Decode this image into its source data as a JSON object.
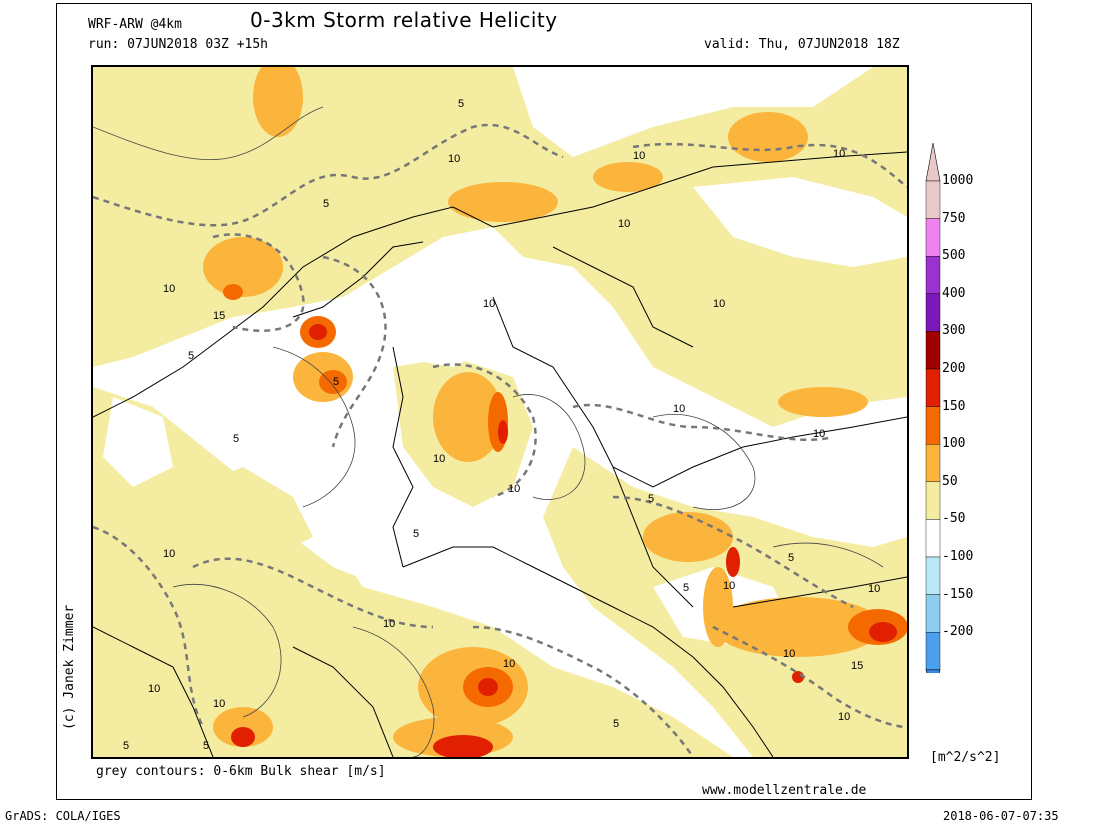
{
  "header": {
    "model": "WRF-ARW @4km",
    "title": "0-3km Storm relative Helicity",
    "run": "run: 07JUN2018 03Z +15h",
    "valid": "valid: Thu, 07JUN2018 18Z"
  },
  "footer": {
    "caption": "grey contours: 0-6km Bulk shear [m/s]",
    "website": "www.modellzentrale.de",
    "software": "GrADS: COLA/IGES",
    "timestamp": "2018-06-07-07:35",
    "credit": "(c) Janek Zimmer"
  },
  "colorbar": {
    "units": "[m^2/s^2]",
    "levels": [
      {
        "label": "1000",
        "color": "#e8c8c8"
      },
      {
        "label": "750",
        "color": "#ee82ee"
      },
      {
        "label": "500",
        "color": "#9a32cd"
      },
      {
        "label": "400",
        "color": "#7a18b8"
      },
      {
        "label": "300",
        "color": "#a00000"
      },
      {
        "label": "200",
        "color": "#e02000"
      },
      {
        "label": "150",
        "color": "#f56a00"
      },
      {
        "label": "100",
        "color": "#fbb43c"
      },
      {
        "label": "50",
        "color": "#f4eca0"
      },
      {
        "label": "-50",
        "color": "#ffffff"
      },
      {
        "label": "-100",
        "color": "#b8e8f5"
      },
      {
        "label": "-150",
        "color": "#8ccdf0"
      },
      {
        "label": "-200",
        "color": "#4aa0ee"
      }
    ],
    "top_cap_color": "#e8c8c8",
    "bottom_cap_color": "#3c86e6"
  },
  "map": {
    "contour_labels": [
      "5",
      "10",
      "15"
    ]
  }
}
